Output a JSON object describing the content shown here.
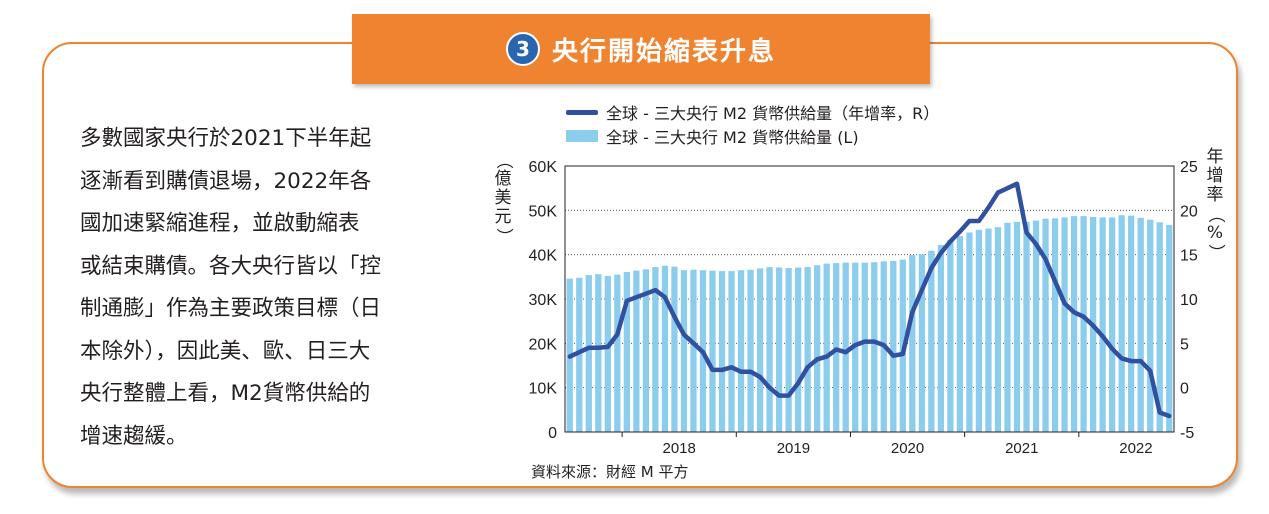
{
  "banner": {
    "number": "3",
    "title": "央行開始縮表升息"
  },
  "body_text": [
    "多數國家央行於2021下半年起逐漸看到購債退場，2022年各國加速緊縮進程，並啟動縮表或結束購債。各大央行皆以「控制通膨」作為主要政策目標（日本除外），因此美、歐、日三大央行整體上看，M2貨幣供給的增速趨緩。"
  ],
  "body_lines": [
    "多數國家央行於2021下半年起",
    "逐漸看到購債退場，2022年各",
    "國加速緊縮進程，並啟動縮表",
    "或結束購債。各大央行皆以「控",
    "制通膨」作為主要政策目標（日",
    "本除外），因此美、歐、日三大",
    "央行整體上看，M2貨幣供給的",
    "增速趨緩。"
  ],
  "source": "資料來源：財經 M 平方",
  "colors": {
    "accent": "#f0832f",
    "badge": "#2a66b0",
    "line": "#3250a0",
    "bar": "#8ccdee"
  },
  "chart_data": {
    "type": "bar+line",
    "title": "",
    "left_axis_unit": "（億美元）",
    "right_axis_unit": "年增率（%）",
    "x_ticks": [
      "2018",
      "2019",
      "2020",
      "2021",
      "2022"
    ],
    "left_ylim": [
      0,
      60000
    ],
    "left_ticks": [
      "0",
      "10K",
      "20K",
      "30K",
      "40K",
      "50K",
      "60K"
    ],
    "right_ylim": [
      -5,
      25
    ],
    "right_ticks": [
      "-5",
      "0",
      "5",
      "10",
      "15",
      "20",
      "25"
    ],
    "grid": "dotted horizontal at left ticks",
    "x_start": "2017-07",
    "x_end": "2022-07",
    "series": [
      {
        "name": "全球 - 三大央行 M2 貨幣供給量 (L)",
        "kind": "bar",
        "axis": "left",
        "values": [
          34600,
          34800,
          35400,
          35600,
          35200,
          35500,
          36100,
          36400,
          36700,
          37200,
          37500,
          37300,
          36500,
          36600,
          36500,
          36400,
          36300,
          36300,
          36500,
          36600,
          36900,
          37200,
          37100,
          37000,
          37100,
          37200,
          37600,
          38000,
          38100,
          38200,
          38200,
          38200,
          38300,
          38500,
          38600,
          38900,
          39900,
          40100,
          40900,
          42200,
          43300,
          44200,
          45000,
          45600,
          45900,
          46200,
          47200,
          47400,
          47400,
          47700,
          48100,
          48200,
          48400,
          48700,
          48700,
          48500,
          48400,
          48400,
          48900,
          48800,
          48300,
          47900,
          47300,
          46700
        ]
      },
      {
        "name": "全球 - 三大央行 M2 貨幣供給量（年增率，R）",
        "kind": "line",
        "axis": "right",
        "values": [
          3.5,
          4.0,
          4.5,
          4.5,
          4.6,
          6.0,
          9.8,
          10.2,
          10.6,
          11.0,
          10.2,
          8.0,
          6.0,
          5.0,
          4.0,
          2.0,
          2.0,
          2.3,
          1.8,
          1.8,
          1.2,
          0,
          -0.9,
          -0.9,
          0.5,
          2.3,
          3.2,
          3.5,
          4.3,
          4.0,
          4.8,
          5.2,
          5.2,
          4.8,
          3.6,
          3.8,
          8.5,
          11.0,
          13.5,
          15.2,
          16.5,
          17.6,
          18.8,
          18.8,
          20.3,
          22.0,
          22.5,
          23.0,
          17.5,
          16.2,
          14.5,
          12.0,
          9.5,
          8.5,
          8.0,
          7.0,
          5.8,
          4.4,
          3.3,
          3.0,
          3.0,
          1.9,
          -2.8,
          -3.2
        ]
      }
    ]
  }
}
